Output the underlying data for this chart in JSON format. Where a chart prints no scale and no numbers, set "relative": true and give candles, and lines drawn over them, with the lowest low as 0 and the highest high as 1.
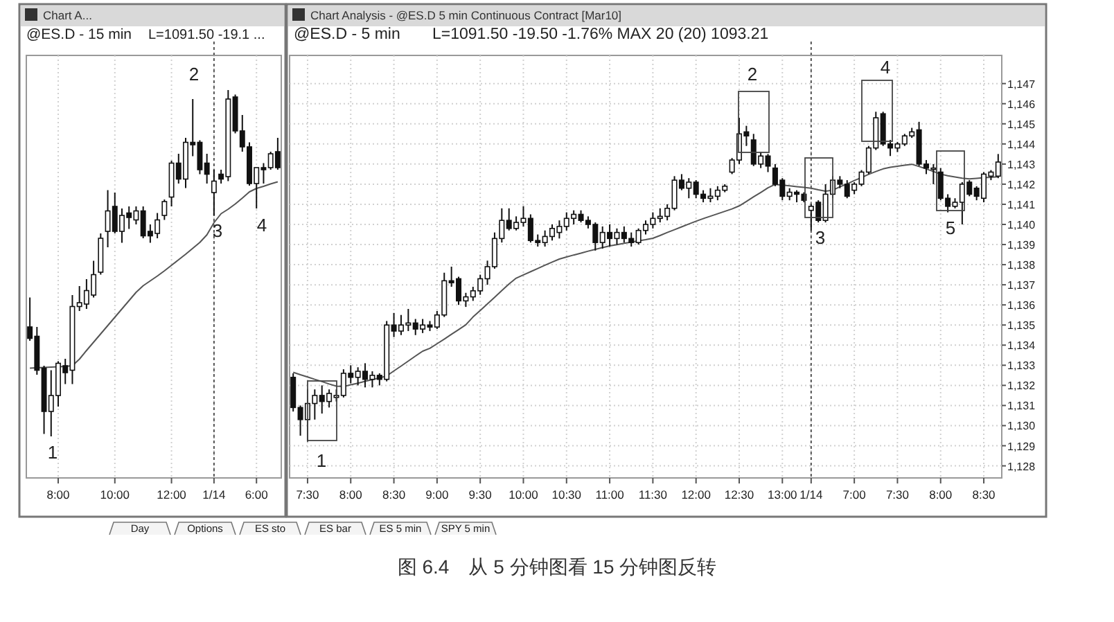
{
  "chart_data": [
    {
      "type": "candlestick",
      "title": "@ES.D - 15 min",
      "subtitle": "L=1091.50 -19.1 ...",
      "relative": true,
      "grid": "x",
      "categories": [
        null,
        null,
        null,
        null,
        "8:00",
        null,
        null,
        null,
        null,
        null,
        null,
        null,
        "10:00",
        null,
        null,
        null,
        null,
        null,
        null,
        null,
        "12:00",
        null,
        null,
        null,
        null,
        null,
        "1/14",
        null,
        null,
        null,
        null,
        null,
        "6:00",
        null,
        null,
        null
      ],
      "ohlc": [
        [
          0.316,
          0.401,
          0.276,
          0.283
        ],
        [
          0.289,
          0.316,
          0.178,
          0.191
        ],
        [
          0.197,
          0.204,
          0.007,
          0.072
        ],
        [
          0.072,
          0.191,
          0,
          0.118
        ],
        [
          0.118,
          0.217,
          0.086,
          0.211
        ],
        [
          0.204,
          0.224,
          0.151,
          0.184
        ],
        [
          0.191,
          0.408,
          0.151,
          0.375
        ],
        [
          0.375,
          0.434,
          0.362,
          0.386
        ],
        [
          0.382,
          0.454,
          0.368,
          0.421
        ],
        [
          0.408,
          0.507,
          0.401,
          0.467
        ],
        [
          0.474,
          0.586,
          0.467,
          0.572
        ],
        [
          0.592,
          0.711,
          0.546,
          0.651
        ],
        [
          0.664,
          0.704,
          0.586,
          0.592
        ],
        [
          0.592,
          0.658,
          0.559,
          0.638
        ],
        [
          0.645,
          0.664,
          0.599,
          0.632
        ],
        [
          0.625,
          0.664,
          0.612,
          0.651
        ],
        [
          0.651,
          0.664,
          0.572,
          0.579
        ],
        [
          0.592,
          0.612,
          0.559,
          0.579
        ],
        [
          0.586,
          0.645,
          0.572,
          0.625
        ],
        [
          0.638,
          0.684,
          0.625,
          0.678
        ],
        [
          0.691,
          0.796,
          0.664,
          0.789
        ],
        [
          0.789,
          0.816,
          0.73,
          0.743
        ],
        [
          0.743,
          0.862,
          0.717,
          0.849
        ],
        [
          0.849,
          0.974,
          0.809,
          0.842
        ],
        [
          0.849,
          0.855,
          0.757,
          0.77
        ],
        [
          0.789,
          0.816,
          0.73,
          0.757
        ],
        [
          0.704,
          0.77,
          0.638,
          0.737
        ],
        [
          0.757,
          0.77,
          0.73,
          0.743
        ],
        [
          0.75,
          1,
          0.737,
          0.974
        ],
        [
          0.98,
          0.987,
          0.875,
          0.882
        ],
        [
          0.882,
          0.928,
          0.822,
          0.836
        ],
        [
          0.836,
          0.849,
          0.724,
          0.73
        ],
        [
          0.73,
          0.776,
          0.658,
          0.776
        ],
        [
          0.776,
          0.789,
          0.73,
          0.77
        ],
        [
          0.776,
          0.822,
          0.77,
          0.816
        ],
        [
          0.822,
          0.862,
          0.77,
          0.776
        ]
      ],
      "series": [
        {
          "type": "line",
          "color": "#555555",
          "values": [
            0.197,
            0.198,
            0.199,
            0.2,
            0.201,
            0.202,
            0.204,
            0.223,
            0.248,
            0.272,
            0.296,
            0.32,
            0.344,
            0.368,
            0.392,
            0.416,
            0.435,
            0.449,
            0.463,
            0.478,
            0.494,
            0.51,
            0.526,
            0.543,
            0.56,
            0.582,
            0.617,
            0.643,
            0.656,
            0.671,
            0.688,
            0.706,
            0.716,
            0.722,
            0.729,
            0.735
          ]
        }
      ],
      "ref_lines": [
        {
          "axis": "x",
          "value": "1/14",
          "line_style": "dotted",
          "color": "#555555"
        }
      ],
      "annotations": [
        "Chart A...",
        "1",
        "2",
        "3",
        "4"
      ]
    },
    {
      "type": "candlestick",
      "title": "@ES.D - 5 min",
      "subtitle": "L=1091.50  -19.50  -1.76%     MAX 20 (20)     1093.21",
      "grid": true,
      "categories": [
        null,
        null,
        "7:30",
        null,
        null,
        null,
        null,
        null,
        "8:00",
        null,
        null,
        null,
        null,
        null,
        "8:30",
        null,
        null,
        null,
        null,
        null,
        "9:00",
        null,
        null,
        null,
        null,
        null,
        "9:30",
        null,
        null,
        null,
        null,
        null,
        "10:00",
        null,
        null,
        null,
        null,
        null,
        "10:30",
        null,
        null,
        null,
        null,
        null,
        "11:00",
        null,
        null,
        null,
        null,
        null,
        "11:30",
        null,
        null,
        null,
        null,
        null,
        "12:00",
        null,
        null,
        null,
        null,
        null,
        "12:30",
        null,
        null,
        null,
        null,
        null,
        "13:00",
        null,
        null,
        null,
        "1/14",
        null,
        null,
        null,
        null,
        null,
        "7:00",
        null,
        null,
        null,
        null,
        null,
        "7:30",
        null,
        null,
        null,
        null,
        null,
        "8:00",
        null,
        null,
        null,
        null,
        null,
        "8:30",
        null,
        null
      ],
      "ohlc": [
        [
          1132.4,
          1132.6,
          1130.7,
          1130.9
        ],
        [
          1130.9,
          1131.0,
          1129.5,
          1130.3
        ],
        [
          1130.3,
          1131.8,
          1129.2,
          1131.1
        ],
        [
          1131.1,
          1131.8,
          1130.3,
          1131.5
        ],
        [
          1131.5,
          1132.0,
          1130.6,
          1131.2
        ],
        [
          1131.2,
          1131.8,
          1130.9,
          1131.6
        ],
        [
          1131.4,
          1131.8,
          1131.2,
          1131.5
        ],
        [
          1131.5,
          1132.8,
          1131.4,
          1132.6
        ],
        [
          1132.6,
          1133.0,
          1132.1,
          1132.4
        ],
        [
          1132.4,
          1132.9,
          1132.0,
          1132.7
        ],
        [
          1132.7,
          1133.1,
          1131.9,
          1132.3
        ],
        [
          1132.3,
          1132.7,
          1131.9,
          1132.5
        ],
        [
          1132.5,
          1132.6,
          1132.0,
          1132.3
        ],
        [
          1132.3,
          1135.2,
          1132.2,
          1135.0
        ],
        [
          1135.0,
          1135.6,
          1134.4,
          1134.7
        ],
        [
          1134.7,
          1135.5,
          1134.5,
          1135.0
        ],
        [
          1135.0,
          1135.8,
          1134.7,
          1135.1
        ],
        [
          1135.1,
          1135.3,
          1134.5,
          1134.8
        ],
        [
          1134.8,
          1135.3,
          1134.6,
          1135.0
        ],
        [
          1135.0,
          1135.2,
          1134.7,
          1134.9
        ],
        [
          1134.9,
          1135.7,
          1134.8,
          1135.5
        ],
        [
          1135.5,
          1137.6,
          1135.4,
          1137.2
        ],
        [
          1137.2,
          1137.9,
          1136.9,
          1137.1
        ],
        [
          1137.3,
          1137.4,
          1136.0,
          1136.2
        ],
        [
          1136.2,
          1136.6,
          1135.9,
          1136.4
        ],
        [
          1136.4,
          1136.9,
          1136.2,
          1136.7
        ],
        [
          1136.7,
          1137.5,
          1136.5,
          1137.3
        ],
        [
          1137.3,
          1138.2,
          1137.0,
          1137.9
        ],
        [
          1137.9,
          1139.6,
          1137.8,
          1139.3
        ],
        [
          1139.3,
          1140.8,
          1139.1,
          1140.2
        ],
        [
          1140.2,
          1140.8,
          1139.7,
          1139.8
        ],
        [
          1139.8,
          1140.4,
          1139.7,
          1140.1
        ],
        [
          1140.1,
          1140.9,
          1139.9,
          1140.3
        ],
        [
          1140.3,
          1140.5,
          1139.1,
          1139.2
        ],
        [
          1139.2,
          1139.5,
          1138.9,
          1139.1
        ],
        [
          1139.1,
          1139.7,
          1138.9,
          1139.4
        ],
        [
          1139.4,
          1140.0,
          1139.2,
          1139.8
        ],
        [
          1139.6,
          1140.2,
          1139.3,
          1139.9
        ],
        [
          1139.9,
          1140.6,
          1139.7,
          1140.3
        ],
        [
          1140.3,
          1140.7,
          1140.0,
          1140.5
        ],
        [
          1140.5,
          1140.7,
          1140.1,
          1140.2
        ],
        [
          1140.2,
          1140.4,
          1139.8,
          1140.0
        ],
        [
          1140.0,
          1140.1,
          1138.7,
          1139.1
        ],
        [
          1139.1,
          1139.9,
          1138.8,
          1139.6
        ],
        [
          1139.6,
          1140.0,
          1138.9,
          1139.3
        ],
        [
          1139.3,
          1139.8,
          1139.0,
          1139.6
        ],
        [
          1139.6,
          1139.9,
          1139.1,
          1139.3
        ],
        [
          1139.3,
          1139.6,
          1138.9,
          1139.1
        ],
        [
          1139.1,
          1139.8,
          1139.0,
          1139.7
        ],
        [
          1139.7,
          1140.2,
          1139.5,
          1140.0
        ],
        [
          1140.0,
          1140.6,
          1139.8,
          1140.3
        ],
        [
          1140.3,
          1140.8,
          1140.1,
          1140.4
        ],
        [
          1140.4,
          1141.0,
          1140.2,
          1140.8
        ],
        [
          1140.8,
          1142.4,
          1140.7,
          1142.2
        ],
        [
          1142.2,
          1142.5,
          1141.7,
          1141.8
        ],
        [
          1141.8,
          1142.3,
          1141.3,
          1142.1
        ],
        [
          1142.1,
          1142.2,
          1141.3,
          1141.5
        ],
        [
          1141.5,
          1141.7,
          1141.1,
          1141.3
        ],
        [
          1141.3,
          1141.8,
          1141.1,
          1141.4
        ],
        [
          1141.4,
          1141.9,
          1141.2,
          1141.7
        ],
        [
          1141.7,
          1142.0,
          1141.6,
          1141.9
        ],
        [
          1142.6,
          1143.3,
          1142.5,
          1143.2
        ],
        [
          1143.2,
          1145.3,
          1143.0,
          1144.5
        ],
        [
          1144.6,
          1144.9,
          1143.9,
          1144.4
        ],
        [
          1144.2,
          1144.5,
          1142.9,
          1143.0
        ],
        [
          1143.0,
          1143.6,
          1142.8,
          1143.4
        ],
        [
          1143.4,
          1143.5,
          1142.6,
          1142.9
        ],
        [
          1142.8,
          1143.0,
          1141.9,
          1142.0
        ],
        [
          1142.2,
          1142.3,
          1141.2,
          1141.4
        ],
        [
          1141.4,
          1141.8,
          1141.2,
          1141.6
        ],
        [
          1141.6,
          1141.7,
          1141.1,
          1141.5
        ],
        [
          1141.5,
          1141.6,
          1141.1,
          1141.2
        ],
        [
          1140.7,
          1141.0,
          1139.7,
          1140.9
        ],
        [
          1141.1,
          1141.2,
          1140.1,
          1140.2
        ],
        [
          1140.2,
          1142.0,
          1140.1,
          1141.5
        ],
        [
          1141.5,
          1142.4,
          1141.3,
          1142.2
        ],
        [
          1142.2,
          1142.4,
          1141.8,
          1142.0
        ],
        [
          1142.0,
          1142.2,
          1141.3,
          1141.4
        ],
        [
          1141.7,
          1142.1,
          1141.5,
          1142.0
        ],
        [
          1142.0,
          1142.7,
          1141.9,
          1142.6
        ],
        [
          1142.6,
          1143.9,
          1142.5,
          1143.8
        ],
        [
          1143.8,
          1145.6,
          1143.7,
          1145.3
        ],
        [
          1145.5,
          1145.6,
          1143.9,
          1144.0
        ],
        [
          1144.0,
          1144.2,
          1143.4,
          1143.8
        ],
        [
          1143.8,
          1144.1,
          1143.6,
          1144.0
        ],
        [
          1144.0,
          1144.5,
          1143.9,
          1144.4
        ],
        [
          1144.4,
          1144.8,
          1144.3,
          1144.6
        ],
        [
          1144.7,
          1145.1,
          1142.9,
          1143.0
        ],
        [
          1143.0,
          1143.2,
          1142.5,
          1142.8
        ],
        [
          1142.8,
          1143.0,
          1142.0,
          1142.8
        ],
        [
          1142.6,
          1142.8,
          1141.2,
          1141.3
        ],
        [
          1141.3,
          1141.5,
          1140.6,
          1140.9
        ],
        [
          1140.9,
          1141.3,
          1140.8,
          1141.1
        ],
        [
          1141.1,
          1142.1,
          1140.0,
          1142.0
        ],
        [
          1142.1,
          1142.2,
          1141.4,
          1141.5
        ],
        [
          1141.8,
          1141.9,
          1141.2,
          1141.4
        ],
        [
          1141.3,
          1142.6,
          1141.1,
          1142.5
        ],
        [
          1142.4,
          1142.7,
          1142.2,
          1142.6
        ],
        [
          1142.4,
          1143.5,
          1142.3,
          1143.1
        ]
      ],
      "series": [
        {
          "type": "line",
          "color": "#555555",
          "values": [
            1132.65,
            1132.53,
            1132.42,
            1132.3,
            1132.19,
            1132.07,
            1131.96,
            1131.94,
            1132.03,
            1132.11,
            1132.2,
            1132.29,
            1132.37,
            1132.47,
            1132.72,
            1132.96,
            1133.21,
            1133.46,
            1133.7,
            1133.84,
            1134.07,
            1134.3,
            1134.54,
            1134.77,
            1135.01,
            1135.4,
            1135.72,
            1136.05,
            1136.38,
            1136.71,
            1137.04,
            1137.33,
            1137.49,
            1137.65,
            1137.81,
            1137.97,
            1138.13,
            1138.28,
            1138.38,
            1138.48,
            1138.57,
            1138.67,
            1138.76,
            1138.85,
            1138.93,
            1138.99,
            1139.06,
            1139.12,
            1139.18,
            1139.24,
            1139.31,
            1139.45,
            1139.6,
            1139.74,
            1139.88,
            1140.02,
            1140.16,
            1140.29,
            1140.41,
            1140.53,
            1140.65,
            1140.77,
            1140.92,
            1141.14,
            1141.37,
            1141.59,
            1141.82,
            1141.99,
            1141.95,
            1141.92,
            1141.88,
            1141.84,
            1141.8,
            1141.72,
            1141.65,
            1141.7,
            1141.87,
            1142.01,
            1142.18,
            1142.33,
            1142.49,
            1142.63,
            1142.76,
            1142.84,
            1142.89,
            1142.94,
            1142.99,
            1142.88,
            1142.76,
            1142.63,
            1142.5,
            1142.42,
            1142.36,
            1142.3,
            1142.26,
            1142.29,
            1142.32,
            1142.34,
            1142.37
          ]
        }
      ],
      "ylim": [
        1127.4,
        1148.4
      ],
      "yticks": [
        {
          "value": 1128,
          "label": "1,128"
        },
        {
          "value": 1129,
          "label": "1,129"
        },
        {
          "value": 1130,
          "label": "1,130"
        },
        {
          "value": 1131,
          "label": "1,131"
        },
        {
          "value": 1132,
          "label": "1,132"
        },
        {
          "value": 1133,
          "label": "1,133"
        },
        {
          "value": 1134,
          "label": "1,134"
        },
        {
          "value": 1135,
          "label": "1,135"
        },
        {
          "value": 1136,
          "label": "1,136"
        },
        {
          "value": 1137,
          "label": "1,137"
        },
        {
          "value": 1138,
          "label": "1,138"
        },
        {
          "value": 1139,
          "label": "1,139"
        },
        {
          "value": 1140,
          "label": "1,140"
        },
        {
          "value": 1141,
          "label": "1,141"
        },
        {
          "value": 1142,
          "label": "1,142"
        },
        {
          "value": 1143,
          "label": "1,143"
        },
        {
          "value": 1144,
          "label": "1,144"
        },
        {
          "value": 1145,
          "label": "1,145"
        },
        {
          "value": 1146,
          "label": "1,146"
        },
        {
          "value": 1147,
          "label": "1,147"
        }
      ],
      "ref_lines": [
        {
          "axis": "x",
          "value": "1/14",
          "line_style": "dotted",
          "color": "#555555"
        }
      ],
      "annotations": [
        "Chart Analysis - @ES.D 5 min Continuous Contract [Mar10]",
        "Day",
        "Options",
        "ES sto",
        "ES bar",
        "ES 5 min",
        "SPY 5 min",
        "图 6.4　从 5 分钟图看 15 分钟图反转",
        "1",
        "2",
        "3",
        "4",
        "5"
      ]
    }
  ]
}
